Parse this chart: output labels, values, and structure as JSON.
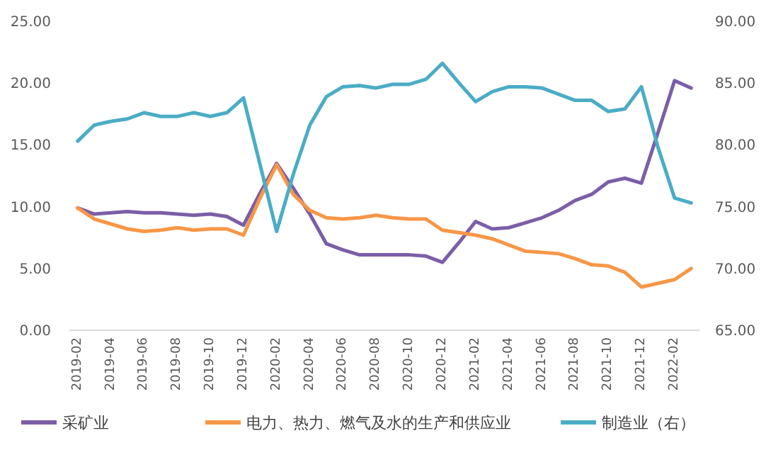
{
  "chart_data": {
    "type": "line",
    "categories": [
      "2019-02",
      null,
      "2019-04",
      null,
      "2019-06",
      null,
      "2019-08",
      null,
      "2019-10",
      null,
      "2019-12",
      null,
      "2020-02",
      null,
      "2020-04",
      null,
      "2020-06",
      null,
      "2020-08",
      null,
      "2020-10",
      null,
      "2020-12",
      null,
      "2021-02",
      null,
      "2021-04",
      null,
      "2021-06",
      null,
      "2021-08",
      null,
      "2021-10",
      null,
      "2021-12",
      null,
      "2022-02",
      null
    ],
    "series": [
      {
        "name": "采矿业",
        "color": "#7b5ea7",
        "values": [
          9.9,
          9.4,
          9.5,
          9.6,
          9.5,
          9.5,
          9.4,
          9.3,
          9.4,
          9.2,
          8.5,
          11.1,
          13.5,
          11.5,
          9.4,
          7.0,
          6.5,
          6.1,
          6.1,
          6.1,
          6.1,
          6.0,
          5.5,
          7.1,
          8.8,
          8.2,
          8.3,
          8.7,
          9.1,
          9.7,
          10.5,
          11.0,
          12.0,
          12.3,
          11.9,
          16.0,
          20.2,
          19.6
        ]
      },
      {
        "name": "电力、热力、燃气及水的生产和供应业",
        "color": "#f79646",
        "values": [
          9.9,
          9.0,
          8.6,
          8.2,
          8.0,
          8.1,
          8.3,
          8.1,
          8.2,
          8.2,
          7.7,
          10.7,
          13.4,
          11.0,
          9.7,
          9.1,
          9.0,
          9.1,
          9.3,
          9.1,
          9.0,
          9.0,
          8.1,
          7.9,
          7.7,
          7.4,
          6.9,
          6.4,
          6.3,
          6.2,
          5.8,
          5.3,
          5.2,
          4.7,
          3.5,
          3.8,
          4.1,
          5.0
        ]
      },
      {
        "name": "制造业（右）",
        "color": "#4bacc6",
        "axis": "y2",
        "values": [
          80.3,
          81.6,
          81.9,
          82.1,
          82.6,
          82.3,
          82.3,
          82.6,
          82.3,
          82.6,
          83.8,
          78.4,
          73.0,
          77.6,
          81.6,
          83.9,
          84.7,
          84.8,
          84.6,
          84.9,
          84.9,
          85.3,
          86.6,
          85.0,
          83.5,
          84.3,
          84.7,
          84.7,
          84.6,
          84.1,
          83.6,
          83.6,
          82.7,
          82.9,
          84.7,
          79.8,
          75.7,
          75.3
        ]
      }
    ],
    "ylim": [
      0,
      25
    ],
    "yticks": [
      {
        "value": 0,
        "label": "0.00"
      },
      {
        "value": 5,
        "label": "5.00"
      },
      {
        "value": 10,
        "label": "10.00"
      },
      {
        "value": 15,
        "label": "15.00"
      },
      {
        "value": 20,
        "label": "20.00"
      },
      {
        "value": 25,
        "label": "25.00"
      }
    ],
    "y2lim": [
      65,
      90
    ],
    "y2ticks": [
      {
        "value": 65,
        "label": "65.00"
      },
      {
        "value": 70,
        "label": "70.00"
      },
      {
        "value": 75,
        "label": "75.00"
      },
      {
        "value": 80,
        "label": "80.00"
      },
      {
        "value": 85,
        "label": "85.00"
      },
      {
        "value": 90,
        "label": "90.00"
      }
    ],
    "grid": false,
    "legend": "bottom",
    "marker": "none"
  }
}
